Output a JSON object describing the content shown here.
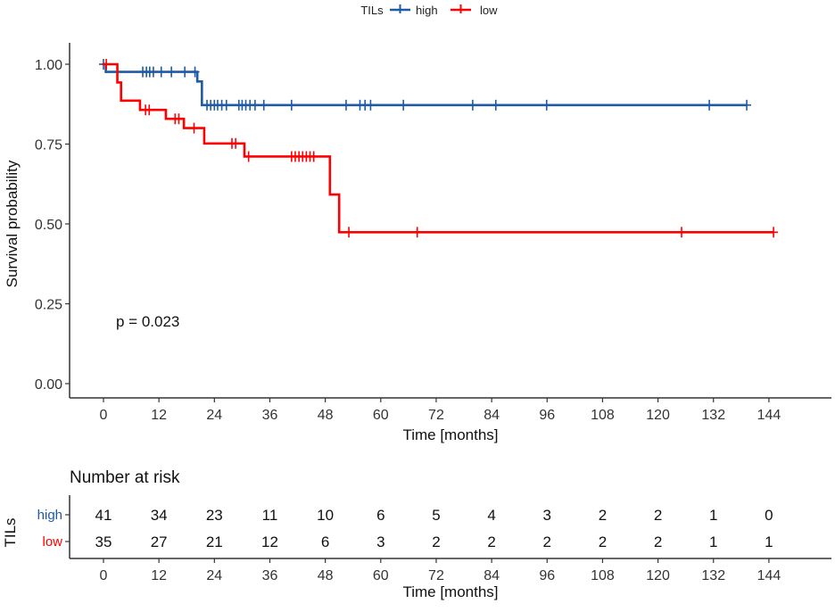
{
  "chart_data": [
    {
      "type": "line",
      "subtype": "kaplan-meier",
      "title": "",
      "xlabel": "Time [months]",
      "ylabel": "Survival probability",
      "xlim": [
        -4,
        158
      ],
      "ylim": [
        -0.02,
        1.04
      ],
      "x_ticks": [
        0,
        12,
        24,
        36,
        48,
        60,
        72,
        84,
        96,
        108,
        120,
        132,
        144
      ],
      "y_ticks": [
        0.0,
        0.25,
        0.5,
        0.75,
        1.0
      ],
      "y_tick_labels": [
        "0.00",
        "0.25",
        "0.50",
        "0.75",
        "1.00"
      ],
      "grid": false,
      "legend": {
        "title": "TILs",
        "placement": "top",
        "entries": [
          {
            "label": "high",
            "color": "#1f5aa6"
          },
          {
            "label": "low",
            "color": "#ff0000"
          }
        ]
      },
      "annotation": "p = 0.023",
      "series": [
        {
          "name": "high",
          "color": "#1f5aa6",
          "steps": [
            [
              0,
              1.0
            ],
            [
              0.5,
              0.976
            ],
            [
              20.3,
              0.946
            ],
            [
              21.3,
              0.872
            ],
            [
              139.2,
              0.872
            ]
          ],
          "censor_times": [
            0,
            8.5,
            9.3,
            10.0,
            10.8,
            12.5,
            14.7,
            17.6,
            19.8,
            22.4,
            23.2,
            24.0,
            24.7,
            25.6,
            26.6,
            29.3,
            30.0,
            30.8,
            31.7,
            32.8,
            34.7,
            40.7,
            52.5,
            55.5,
            56.6,
            57.8,
            64.9,
            79.9,
            84.9,
            95.9,
            131.1,
            139.2
          ]
        },
        {
          "name": "low",
          "color": "#ff0000",
          "steps": [
            [
              0,
              1.0
            ],
            [
              3.0,
              0.943
            ],
            [
              3.8,
              0.886
            ],
            [
              7.9,
              0.857
            ],
            [
              13.5,
              0.829
            ],
            [
              17.4,
              0.8
            ],
            [
              21.8,
              0.752
            ],
            [
              30.5,
              0.711
            ],
            [
              49.0,
              0.592
            ],
            [
              51.0,
              0.474
            ],
            [
              145.0,
              0.474
            ]
          ],
          "censor_times": [
            0.6,
            9.1,
            9.9,
            15.5,
            16.3,
            19.6,
            27.8,
            28.6,
            31.4,
            40.7,
            41.5,
            42.3,
            43.1,
            43.9,
            44.7,
            45.5,
            53.1,
            67.9,
            125.1,
            145.0
          ]
        }
      ]
    },
    {
      "type": "table",
      "title": "Number at risk",
      "xlabel": "Time [months]",
      "ylabel": "TILs",
      "x_ticks": [
        0,
        12,
        24,
        36,
        48,
        60,
        72,
        84,
        96,
        108,
        120,
        132,
        144
      ],
      "rows": [
        {
          "label": "high",
          "color": "#1f5aa6",
          "values": [
            41,
            34,
            23,
            11,
            10,
            6,
            5,
            4,
            3,
            2,
            2,
            1,
            0
          ]
        },
        {
          "label": "low",
          "color": "#ff0000",
          "values": [
            35,
            27,
            21,
            12,
            6,
            3,
            2,
            2,
            2,
            2,
            2,
            1,
            1
          ]
        }
      ]
    }
  ]
}
